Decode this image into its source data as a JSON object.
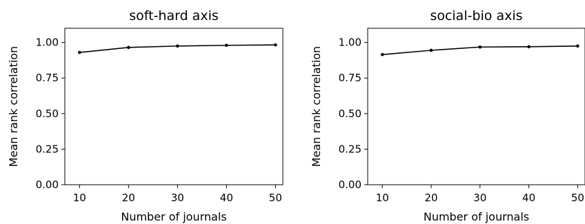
{
  "chart_data": [
    {
      "type": "line",
      "title": "soft-hard axis",
      "xlabel": "Number of journals",
      "ylabel": "Mean rank correlation",
      "xlim": [
        7,
        51.5
      ],
      "ylim": [
        0.0,
        1.1
      ],
      "xticks": [
        10,
        20,
        30,
        40,
        50
      ],
      "yticks": [
        0.0,
        0.25,
        0.5,
        0.75,
        1.0
      ],
      "xtick_labels": [
        "10",
        "20",
        "30",
        "40",
        "50"
      ],
      "ytick_labels": [
        "0.00",
        "0.25",
        "0.50",
        "0.75",
        "1.00"
      ],
      "grid": false,
      "series": [
        {
          "x": [
            10,
            20,
            30,
            40,
            50
          ],
          "values": [
            0.93,
            0.965,
            0.975,
            0.98,
            0.983
          ],
          "color": "#000000"
        }
      ]
    },
    {
      "type": "line",
      "title": "social-bio axis",
      "xlabel": "Number of journals",
      "ylabel": "Mean rank correlation",
      "xlim": [
        7,
        51.5
      ],
      "ylim": [
        0.0,
        1.1
      ],
      "xticks": [
        10,
        20,
        30,
        40,
        50
      ],
      "yticks": [
        0.0,
        0.25,
        0.5,
        0.75,
        1.0
      ],
      "xtick_labels": [
        "10",
        "20",
        "30",
        "40",
        "50"
      ],
      "ytick_labels": [
        "0.00",
        "0.25",
        "0.50",
        "0.75",
        "1.00"
      ],
      "grid": false,
      "series": [
        {
          "x": [
            10,
            20,
            30,
            40,
            50
          ],
          "values": [
            0.915,
            0.945,
            0.968,
            0.97,
            0.975
          ],
          "color": "#000000"
        }
      ]
    }
  ]
}
